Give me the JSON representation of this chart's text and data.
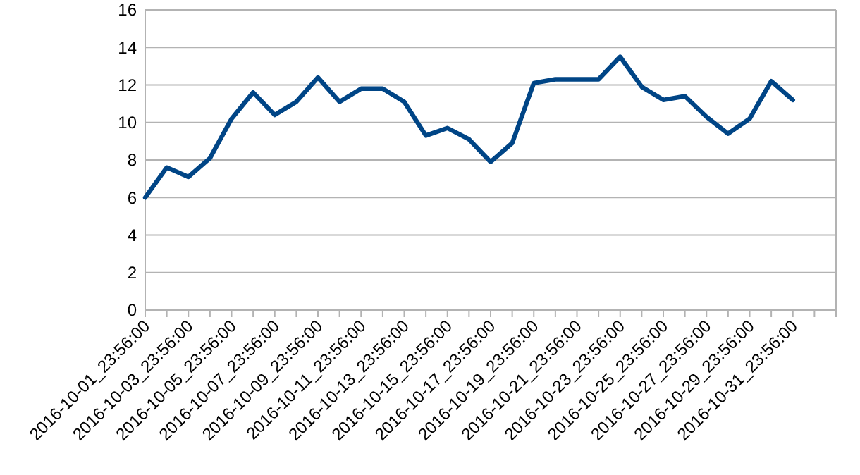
{
  "chart_data": {
    "type": "line",
    "categories": [
      "2016-10-01_23:56:00",
      null,
      "2016-10-03_23:56:00",
      null,
      "2016-10-05_23:56:00",
      null,
      "2016-10-07_23:56:00",
      null,
      "2016-10-09_23:56:00",
      null,
      "2016-10-11_23:56:00",
      null,
      "2016-10-13_23:56:00",
      null,
      "2016-10-15_23:56:00",
      null,
      "2016-10-17_23:56:00",
      null,
      "2016-10-19_23:56:00",
      null,
      "2016-10-21_23:56:00",
      null,
      "2016-10-23_23:56:00",
      null,
      "2016-10-25_23:56:00",
      null,
      "2016-10-27_23:56:00",
      null,
      "2016-10-29_23:56:00",
      null,
      "2016-10-31_23:56:00",
      null,
      null
    ],
    "series": [
      {
        "color": "#004586",
        "values": [
          6.0,
          7.6,
          7.1,
          8.1,
          10.2,
          11.6,
          10.4,
          11.1,
          12.4,
          11.1,
          11.8,
          11.8,
          11.1,
          9.3,
          9.7,
          9.1,
          7.9,
          8.9,
          12.1,
          12.3,
          12.3,
          12.3,
          13.5,
          11.9,
          11.2,
          11.4,
          10.3,
          9.4,
          10.2,
          12.2,
          11.2,
          null,
          null
        ]
      }
    ],
    "ylim": [
      0,
      16
    ],
    "yticks": [
      0,
      2,
      4,
      6,
      8,
      10,
      12,
      14,
      16
    ],
    "grid": "y",
    "marker": "none",
    "line_style": "solid"
  }
}
